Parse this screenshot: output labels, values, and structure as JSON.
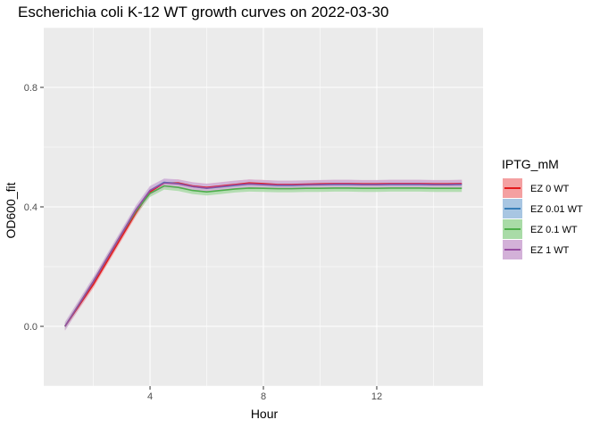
{
  "chart_data": {
    "type": "line",
    "title": "Escherichia coli K-12 WT growth curves on 2022-03-30",
    "xlabel": "Hour",
    "ylabel": "OD600_fit",
    "xlim": [
      0.25,
      15.75
    ],
    "ylim": [
      -0.2,
      1.0
    ],
    "xticks": [
      4,
      8,
      12
    ],
    "xtick_labels": [
      "4",
      "8",
      "12"
    ],
    "yticks": [
      0.0,
      0.4,
      0.8
    ],
    "ytick_labels": [
      "0.0",
      "0.4",
      "0.8"
    ],
    "grid": true,
    "legend": {
      "title": "IPTG_mM",
      "position": "right"
    },
    "x": [
      1.0,
      1.5,
      2.0,
      2.5,
      3.0,
      3.5,
      4.0,
      4.5,
      5.0,
      5.5,
      6.0,
      6.5,
      7.0,
      7.5,
      8.0,
      8.5,
      9.0,
      9.5,
      10.0,
      10.5,
      11.0,
      11.5,
      12.0,
      12.5,
      13.0,
      13.5,
      14.0,
      14.5,
      15.0
    ],
    "series": [
      {
        "name": "EZ 0 WT",
        "color": "#e41a1c",
        "fill": "#f4a0a1",
        "values": [
          0.0,
          0.07,
          0.14,
          0.22,
          0.3,
          0.38,
          0.45,
          0.48,
          0.48,
          0.47,
          0.465,
          0.47,
          0.475,
          0.48,
          0.478,
          0.475,
          0.475,
          0.476,
          0.477,
          0.478,
          0.478,
          0.477,
          0.477,
          0.478,
          0.478,
          0.478,
          0.477,
          0.477,
          0.478
        ],
        "band": 0.012
      },
      {
        "name": "EZ 0.01 WT",
        "color": "#377eb8",
        "fill": "#a8c6e2",
        "values": [
          0.0,
          0.075,
          0.15,
          0.23,
          0.31,
          0.39,
          0.455,
          0.482,
          0.478,
          0.468,
          0.462,
          0.467,
          0.472,
          0.476,
          0.474,
          0.472,
          0.472,
          0.473,
          0.474,
          0.475,
          0.475,
          0.474,
          0.474,
          0.475,
          0.475,
          0.475,
          0.474,
          0.474,
          0.475
        ],
        "band": 0.012
      },
      {
        "name": "EZ 0.1 WT",
        "color": "#4daf4a",
        "fill": "#a9dba7",
        "values": [
          0.0,
          0.075,
          0.15,
          0.23,
          0.31,
          0.385,
          0.445,
          0.47,
          0.465,
          0.455,
          0.45,
          0.455,
          0.46,
          0.463,
          0.462,
          0.461,
          0.461,
          0.462,
          0.462,
          0.463,
          0.463,
          0.462,
          0.462,
          0.463,
          0.463,
          0.463,
          0.462,
          0.462,
          0.462
        ],
        "band": 0.012
      },
      {
        "name": "EZ 1 WT",
        "color": "#984ea3",
        "fill": "#d3b1d8",
        "values": [
          0.0,
          0.075,
          0.15,
          0.23,
          0.31,
          0.39,
          0.455,
          0.48,
          0.477,
          0.468,
          0.463,
          0.468,
          0.473,
          0.477,
          0.475,
          0.473,
          0.473,
          0.474,
          0.475,
          0.476,
          0.476,
          0.475,
          0.475,
          0.476,
          0.476,
          0.476,
          0.475,
          0.475,
          0.476
        ],
        "band": 0.015
      }
    ]
  }
}
